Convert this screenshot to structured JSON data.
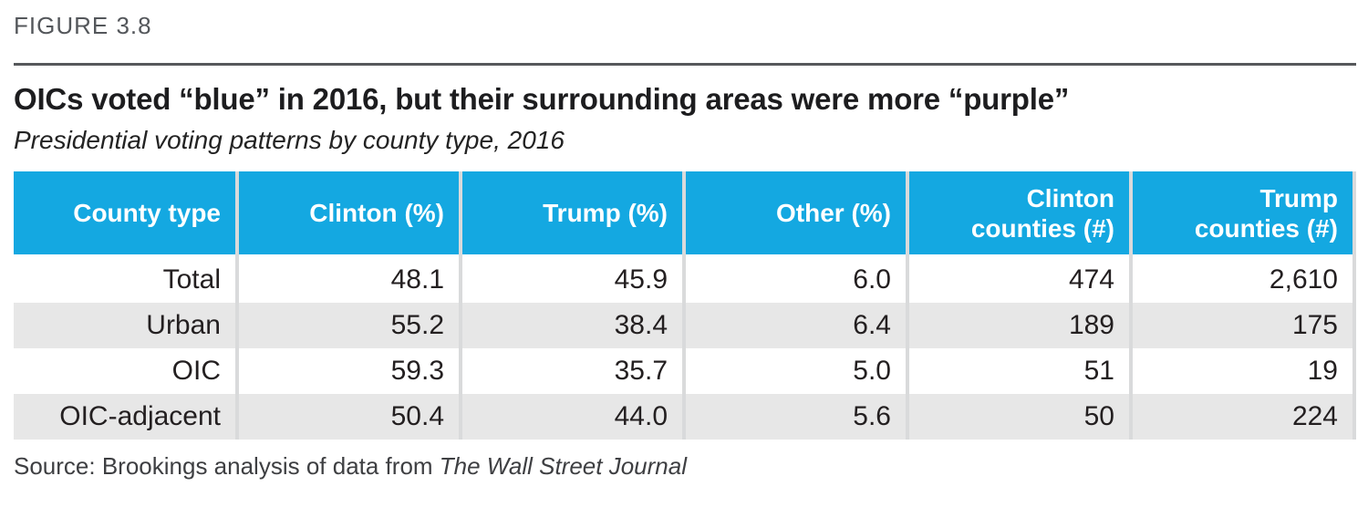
{
  "figure_label": "FIGURE 3.8",
  "title": "OICs voted “blue” in 2016, but their surrounding areas were more “purple”",
  "subtitle": "Presidential voting patterns by county type, 2016",
  "source": {
    "prefix": "Source: Brookings analysis of data from ",
    "publication": "The Wall Street Journal"
  },
  "table": {
    "header_labels": [
      "County type",
      "Clinton (%)",
      "Trump (%)",
      "Other (%)",
      "Clinton\ncounties (#)",
      "Trump\ncounties (#)"
    ],
    "rows": [
      [
        "Total",
        "48.1",
        "45.9",
        "6.0",
        "474",
        "2,610"
      ],
      [
        "Urban",
        "55.2",
        "38.4",
        "6.4",
        "189",
        "175"
      ],
      [
        "OIC",
        "59.3",
        "35.7",
        "5.0",
        "51",
        "19"
      ],
      [
        "OIC-adjacent",
        "50.4",
        "44.0",
        "5.6",
        "50",
        "224"
      ]
    ]
  },
  "colors": {
    "header_bg": "#14a8e1",
    "header_text": "#ffffff",
    "alt_row_bg": "#e7e7e7",
    "column_separator": "#d9dadb",
    "rule": "#56585b",
    "figure_label_text": "#54575b"
  },
  "chart_data": {
    "type": "table",
    "title": "OICs voted “blue” in 2016, but their surrounding areas were more “purple”",
    "subtitle": "Presidential voting patterns by county type, 2016",
    "columns": [
      "County type",
      "Clinton (%)",
      "Trump (%)",
      "Other (%)",
      "Clinton counties (#)",
      "Trump counties (#)"
    ],
    "rows": [
      {
        "county_type": "Total",
        "clinton_pct": 48.1,
        "trump_pct": 45.9,
        "other_pct": 6.0,
        "clinton_counties": 474,
        "trump_counties": 2610
      },
      {
        "county_type": "Urban",
        "clinton_pct": 55.2,
        "trump_pct": 38.4,
        "other_pct": 6.4,
        "clinton_counties": 189,
        "trump_counties": 175
      },
      {
        "county_type": "OIC",
        "clinton_pct": 59.3,
        "trump_pct": 35.7,
        "other_pct": 5.0,
        "clinton_counties": 51,
        "trump_counties": 19
      },
      {
        "county_type": "OIC-adjacent",
        "clinton_pct": 50.4,
        "trump_pct": 44.0,
        "other_pct": 5.6,
        "clinton_counties": 50,
        "trump_counties": 224
      }
    ],
    "source": "Source: Brookings analysis of data from The Wall Street Journal",
    "figure_label": "FIGURE 3.8"
  }
}
